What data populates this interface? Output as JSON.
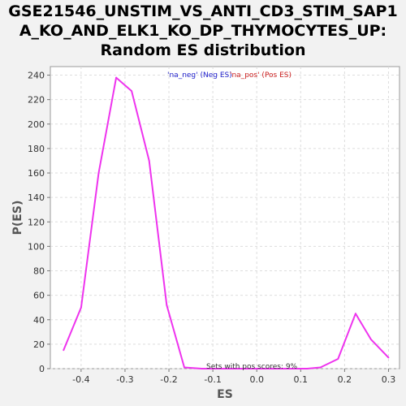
{
  "chart_data": {
    "type": "line",
    "title_lines": [
      "GSE21546_UNSTIM_VS_ANTI_CD3_STIM_SAP1",
      "A_KO_AND_ELK1_KO_DP_THYMOCYTES_UP:",
      "Random ES distribution"
    ],
    "xlabel": "ES",
    "ylabel": "P(ES)",
    "xlim": [
      -0.47,
      0.325
    ],
    "ylim": [
      0,
      247
    ],
    "x_ticks": [
      -0.4,
      -0.3,
      -0.2,
      -0.1,
      0.0,
      0.1,
      0.2,
      0.3
    ],
    "x_tick_labels": [
      "-0.4",
      "-0.3",
      "-0.2",
      "-0.1",
      "0.0",
      "0.1",
      "0.2",
      "0.3"
    ],
    "y_ticks": [
      0,
      20,
      40,
      60,
      80,
      100,
      120,
      140,
      160,
      180,
      200,
      220,
      240
    ],
    "y_tick_labels": [
      "0",
      "20",
      "40",
      "60",
      "80",
      "100",
      "120",
      "140",
      "160",
      "180",
      "200",
      "220",
      "240"
    ],
    "grid": true,
    "legend": {
      "placement": "top-center",
      "entries": [
        {
          "text": "'na_neg' (Neg ES)",
          "color": "#2222cc"
        },
        {
          "text": "'na_pos' (Pos ES)",
          "color": "#cc2222"
        }
      ]
    },
    "annotation": "Sets with pos scores: 9%",
    "series": [
      {
        "color": "#ee33ee",
        "x": [
          -0.44,
          -0.4,
          -0.36,
          -0.32,
          -0.285,
          -0.245,
          -0.205,
          -0.165,
          -0.125,
          -0.085,
          -0.045,
          -0.005,
          0.035,
          0.075,
          0.115,
          0.145,
          0.185,
          0.225,
          0.26,
          0.3
        ],
        "y": [
          15,
          50,
          160,
          238,
          227,
          170,
          52,
          1,
          0,
          0,
          0,
          0,
          0,
          0,
          0,
          1,
          8,
          45,
          24,
          9
        ]
      }
    ]
  }
}
